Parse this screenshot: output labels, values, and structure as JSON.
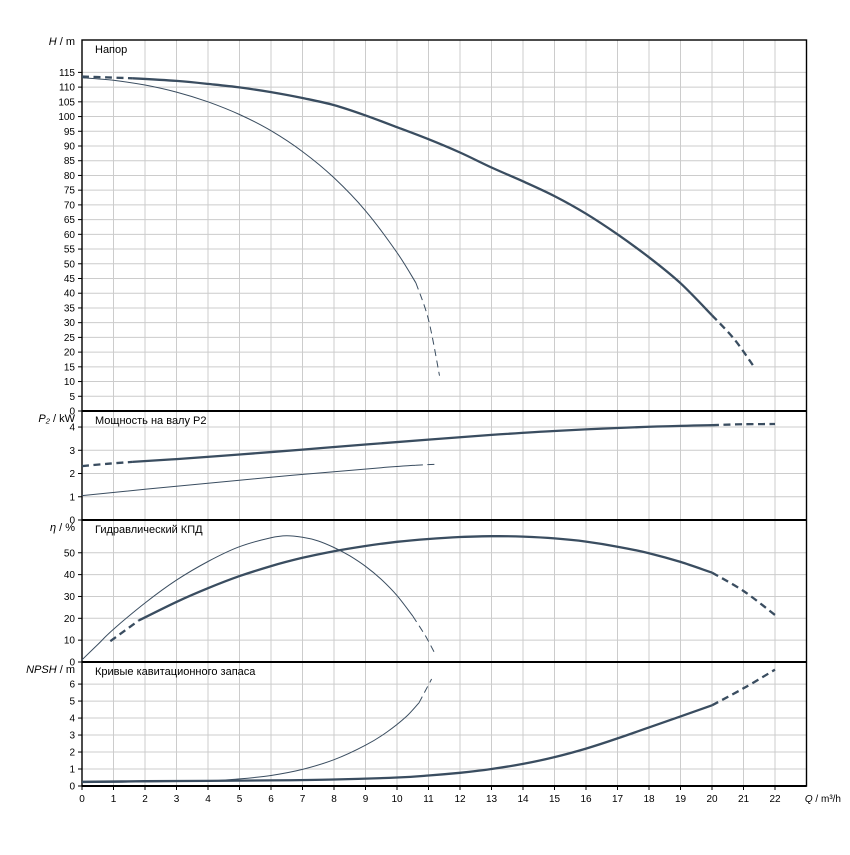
{
  "figure": {
    "background": "#ffffff",
    "grid_color": "#cccccc",
    "axis_color": "#000000",
    "curve_color": "#3a4d60",
    "x_axis": {
      "label_var": "Q",
      "label_unit": "m³/h",
      "lim": [
        0,
        23
      ],
      "ticks": [
        0,
        1,
        2,
        3,
        4,
        5,
        6,
        7,
        8,
        9,
        10,
        11,
        12,
        13,
        14,
        15,
        16,
        17,
        18,
        19,
        20,
        21,
        22
      ]
    }
  },
  "chart_data": [
    {
      "type": "line",
      "title": "Напор",
      "ylabel_var": "H",
      "ylabel_unit": "m",
      "ylim": [
        0,
        126
      ],
      "yticks": [
        0,
        5,
        10,
        15,
        20,
        25,
        30,
        35,
        40,
        45,
        50,
        55,
        60,
        65,
        70,
        75,
        80,
        85,
        90,
        95,
        100,
        105,
        110,
        115
      ],
      "series": [
        {
          "name": "head-curve-primary",
          "width": "thick",
          "segments": [
            {
              "dash": true,
              "points": [
                [
                  0,
                  113.6
                ],
                [
                  0.8,
                  113.3
                ],
                [
                  1.6,
                  113.0
                ]
              ]
            },
            {
              "dash": false,
              "points": [
                [
                  1.6,
                  113.0
                ],
                [
                  3,
                  112.1
                ],
                [
                  4,
                  111.1
                ],
                [
                  5,
                  109.9
                ],
                [
                  6,
                  108.3
                ],
                [
                  7,
                  106.3
                ],
                [
                  8,
                  103.9
                ],
                [
                  9,
                  100.4
                ],
                [
                  10,
                  96.4
                ],
                [
                  11,
                  92.3
                ],
                [
                  12,
                  87.8
                ],
                [
                  13,
                  82.7
                ],
                [
                  14,
                  78.0
                ],
                [
                  15,
                  73.0
                ],
                [
                  16,
                  67.0
                ],
                [
                  17,
                  60.0
                ],
                [
                  18,
                  52.2
                ],
                [
                  19,
                  43.4
                ],
                [
                  20,
                  32.5
                ]
              ]
            },
            {
              "dash": true,
              "points": [
                [
                  20,
                  32.5
                ],
                [
                  20.7,
                  24.5
                ],
                [
                  21.3,
                  15.5
                ]
              ]
            }
          ]
        },
        {
          "name": "head-curve-secondary",
          "width": "thin",
          "segments": [
            {
              "dash": false,
              "points": [
                [
                  0,
                  113.2
                ],
                [
                  1,
                  112.3
                ],
                [
                  2,
                  110.7
                ],
                [
                  3,
                  108.3
                ],
                [
                  4,
                  105.0
                ],
                [
                  5,
                  100.7
                ],
                [
                  6,
                  95.2
                ],
                [
                  7,
                  88.1
                ],
                [
                  8,
                  79.2
                ],
                [
                  9,
                  68.0
                ],
                [
                  10,
                  53.8
                ],
                [
                  10.6,
                  43.5
                ]
              ]
            },
            {
              "dash": true,
              "points": [
                [
                  10.6,
                  43.5
                ],
                [
                  11.0,
                  31.0
                ],
                [
                  11.35,
                  12.0
                ]
              ]
            }
          ]
        }
      ]
    },
    {
      "type": "line",
      "title": "Мощность на валу P2",
      "ylabel_var": "P₂",
      "ylabel_unit": "kW",
      "ylim": [
        0,
        4.69
      ],
      "yticks": [
        0,
        1,
        2,
        3,
        4
      ],
      "series": [
        {
          "name": "power-curve-primary",
          "width": "thick",
          "segments": [
            {
              "dash": true,
              "points": [
                [
                  0,
                  2.32
                ],
                [
                  0.8,
                  2.42
                ],
                [
                  1.6,
                  2.5
                ]
              ]
            },
            {
              "dash": false,
              "points": [
                [
                  1.6,
                  2.5
                ],
                [
                  3,
                  2.62
                ],
                [
                  5,
                  2.82
                ],
                [
                  7,
                  3.03
                ],
                [
                  9,
                  3.25
                ],
                [
                  11,
                  3.46
                ],
                [
                  13,
                  3.66
                ],
                [
                  15,
                  3.83
                ],
                [
                  17,
                  3.96
                ],
                [
                  19,
                  4.05
                ],
                [
                  20,
                  4.08
                ]
              ]
            },
            {
              "dash": true,
              "points": [
                [
                  20,
                  4.08
                ],
                [
                  21,
                  4.12
                ],
                [
                  22,
                  4.13
                ]
              ]
            }
          ]
        },
        {
          "name": "power-curve-secondary",
          "width": "thin",
          "segments": [
            {
              "dash": false,
              "points": [
                [
                  0,
                  1.05
                ],
                [
                  2,
                  1.32
                ],
                [
                  4,
                  1.58
                ],
                [
                  6,
                  1.84
                ],
                [
                  8,
                  2.08
                ],
                [
                  9.5,
                  2.25
                ],
                [
                  10.6,
                  2.36
                ]
              ]
            },
            {
              "dash": true,
              "points": [
                [
                  10.6,
                  2.36
                ],
                [
                  11.3,
                  2.4
                ]
              ]
            }
          ]
        }
      ]
    },
    {
      "type": "line",
      "title": "Гидравлический КПД",
      "ylabel_var": "η",
      "ylabel_unit": "%",
      "ylim": [
        0,
        65
      ],
      "yticks": [
        0,
        10,
        20,
        30,
        40,
        50
      ],
      "series": [
        {
          "name": "efficiency-curve-primary",
          "width": "thick",
          "segments": [
            {
              "dash": true,
              "points": [
                [
                  0.9,
                  9.5
                ],
                [
                  1.8,
                  19.0
                ]
              ]
            },
            {
              "dash": false,
              "points": [
                [
                  1.8,
                  19.0
                ],
                [
                  3,
                  27.5
                ],
                [
                  4,
                  33.8
                ],
                [
                  5,
                  39.3
                ],
                [
                  6,
                  43.9
                ],
                [
                  7,
                  47.7
                ],
                [
                  8,
                  50.7
                ],
                [
                  9,
                  53.1
                ],
                [
                  10,
                  55.0
                ],
                [
                  11,
                  56.3
                ],
                [
                  12,
                  57.2
                ],
                [
                  13,
                  57.6
                ],
                [
                  14,
                  57.4
                ],
                [
                  15,
                  56.6
                ],
                [
                  16,
                  55.1
                ],
                [
                  17,
                  52.8
                ],
                [
                  18,
                  49.8
                ],
                [
                  19,
                  45.8
                ],
                [
                  20,
                  40.9
                ]
              ]
            },
            {
              "dash": true,
              "points": [
                [
                  20,
                  40.9
                ],
                [
                  21,
                  32.5
                ],
                [
                  22,
                  21.5
                ]
              ]
            }
          ]
        },
        {
          "name": "efficiency-curve-secondary",
          "width": "thin",
          "segments": [
            {
              "dash": false,
              "points": [
                [
                  0,
                  1.0
                ],
                [
                  0.5,
                  8.0
                ],
                [
                  1,
                  15.0
                ],
                [
                  2,
                  27.0
                ],
                [
                  3,
                  37.5
                ],
                [
                  4,
                  46.0
                ],
                [
                  5,
                  52.8
                ],
                [
                  6,
                  56.9
                ],
                [
                  6.5,
                  57.8
                ],
                [
                  7,
                  57.1
                ],
                [
                  7.5,
                  55.4
                ],
                [
                  8,
                  52.4
                ],
                [
                  8.5,
                  48.6
                ],
                [
                  9,
                  43.8
                ],
                [
                  9.5,
                  37.8
                ],
                [
                  10,
                  30.4
                ],
                [
                  10.5,
                  21.0
                ]
              ]
            },
            {
              "dash": true,
              "points": [
                [
                  10.5,
                  21.0
                ],
                [
                  10.9,
                  12.0
                ],
                [
                  11.2,
                  4.0
                ]
              ]
            }
          ]
        }
      ]
    },
    {
      "type": "line",
      "title": "Кривые кавитационного запаса",
      "ylabel_var": "NPSH",
      "ylabel_unit": "m",
      "ylim": [
        0,
        7.3
      ],
      "yticks": [
        0,
        1,
        2,
        3,
        4,
        5,
        6
      ],
      "series": [
        {
          "name": "npsh-curve-primary",
          "width": "thick",
          "segments": [
            {
              "dash": false,
              "points": [
                [
                  0,
                  0.25
                ],
                [
                  2,
                  0.28
                ],
                [
                  4,
                  0.3
                ],
                [
                  6,
                  0.33
                ],
                [
                  8,
                  0.38
                ],
                [
                  10,
                  0.5
                ],
                [
                  11,
                  0.62
                ],
                [
                  12,
                  0.78
                ],
                [
                  13,
                  1.0
                ],
                [
                  14,
                  1.3
                ],
                [
                  15,
                  1.7
                ],
                [
                  16,
                  2.2
                ],
                [
                  17,
                  2.8
                ],
                [
                  18,
                  3.45
                ],
                [
                  19,
                  4.1
                ],
                [
                  20,
                  4.75
                ]
              ]
            },
            {
              "dash": true,
              "points": [
                [
                  20,
                  4.75
                ],
                [
                  21,
                  5.75
                ],
                [
                  22,
                  6.85
                ]
              ]
            }
          ]
        },
        {
          "name": "npsh-curve-secondary",
          "width": "thin",
          "segments": [
            {
              "dash": false,
              "points": [
                [
                  0,
                  0.2
                ],
                [
                  2,
                  0.24
                ],
                [
                  4,
                  0.3
                ],
                [
                  5,
                  0.42
                ],
                [
                  6,
                  0.62
                ],
                [
                  7,
                  0.98
                ],
                [
                  8,
                  1.55
                ],
                [
                  9,
                  2.4
                ],
                [
                  9.7,
                  3.2
                ],
                [
                  10.3,
                  4.1
                ],
                [
                  10.7,
                  4.9
                ]
              ]
            },
            {
              "dash": true,
              "points": [
                [
                  10.7,
                  4.9
                ],
                [
                  11.1,
                  6.3
                ]
              ]
            }
          ]
        }
      ]
    }
  ]
}
